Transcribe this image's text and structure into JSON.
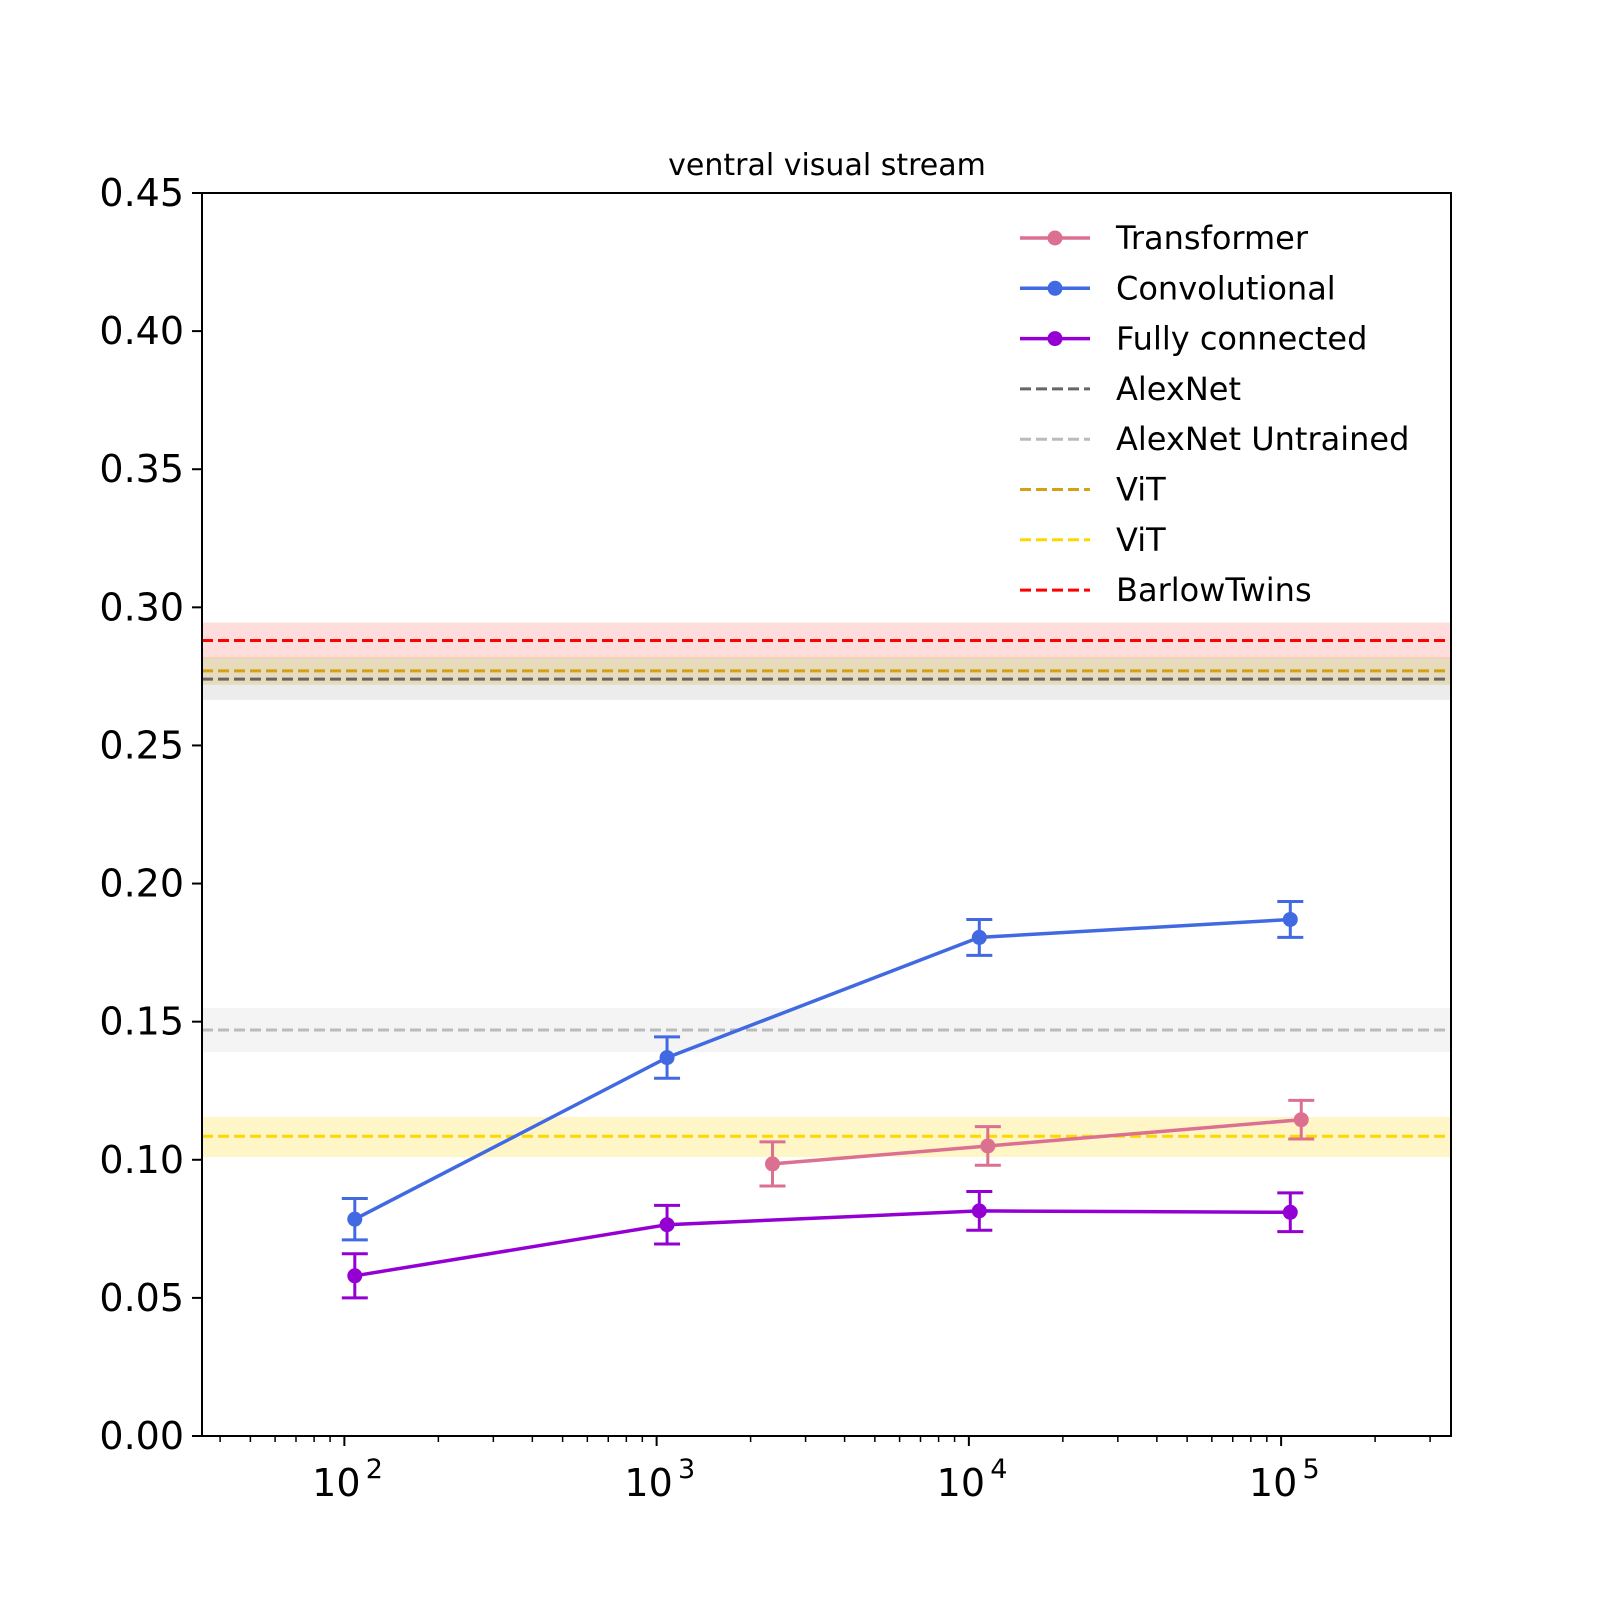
{
  "chart_data": {
    "type": "line",
    "title": "ventral visual stream",
    "xlabel": "",
    "ylabel": "",
    "x_scale": "log",
    "xlim": [
      35,
      350000
    ],
    "ylim": [
      0,
      0.45
    ],
    "grid": false,
    "legend_position": "top-right",
    "y_ticks": [
      "0.00",
      "0.05",
      "0.10",
      "0.15",
      "0.20",
      "0.25",
      "0.30",
      "0.35",
      "0.40",
      "0.45"
    ],
    "x_ticks": [
      {
        "value": 100,
        "base": "10",
        "exp": "2"
      },
      {
        "value": 1000,
        "base": "10",
        "exp": "3"
      },
      {
        "value": 10000,
        "base": "10",
        "exp": "4"
      },
      {
        "value": 100000,
        "base": "10",
        "exp": "5"
      }
    ],
    "series": [
      {
        "name": "Transformer",
        "color": "#dc7090",
        "points": [
          {
            "x": 2350,
            "y": 0.0985,
            "err": 0.008
          },
          {
            "x": 11500,
            "y": 0.105,
            "err": 0.007
          },
          {
            "x": 116000,
            "y": 0.1145,
            "err": 0.007
          }
        ]
      },
      {
        "name": "Convolutional",
        "color": "#4169e1",
        "points": [
          {
            "x": 108,
            "y": 0.0785,
            "err": 0.0075
          },
          {
            "x": 1080,
            "y": 0.137,
            "err": 0.0075
          },
          {
            "x": 10800,
            "y": 0.1805,
            "err": 0.0065
          },
          {
            "x": 107000,
            "y": 0.187,
            "err": 0.0065
          }
        ]
      },
      {
        "name": "Fully connected",
        "color": "#9400d3",
        "points": [
          {
            "x": 108,
            "y": 0.058,
            "err": 0.008
          },
          {
            "x": 1080,
            "y": 0.0765,
            "err": 0.007
          },
          {
            "x": 10800,
            "y": 0.0815,
            "err": 0.007
          },
          {
            "x": 107000,
            "y": 0.081,
            "err": 0.007
          }
        ]
      }
    ],
    "baselines": [
      {
        "name": "AlexNet",
        "color": "#666666",
        "band_color": "#aaaaaa",
        "y": 0.274,
        "band": [
          0.2665,
          0.2815
        ]
      },
      {
        "name": "AlexNet Untrained",
        "color": "#bbbbbb",
        "band_color": "#cccccc",
        "y": 0.147,
        "band": [
          0.139,
          0.155
        ]
      },
      {
        "name": "ViT",
        "color": "#d4a017",
        "band_color": "#d4a017",
        "y": 0.277,
        "band": [
          0.272,
          0.282
        ]
      },
      {
        "name": "ViT",
        "color": "#ffd700",
        "band_color": "#ffd700",
        "y": 0.1085,
        "band": [
          0.101,
          0.1155
        ]
      },
      {
        "name": "BarlowTwins",
        "color": "#ff0000",
        "band_color": "#ff6666",
        "y": 0.288,
        "band": [
          0.2815,
          0.2945
        ]
      }
    ],
    "legend": [
      "Transformer",
      "Convolutional",
      "Fully connected",
      "AlexNet",
      "AlexNet Untrained",
      "ViT",
      "ViT",
      "BarlowTwins"
    ]
  }
}
